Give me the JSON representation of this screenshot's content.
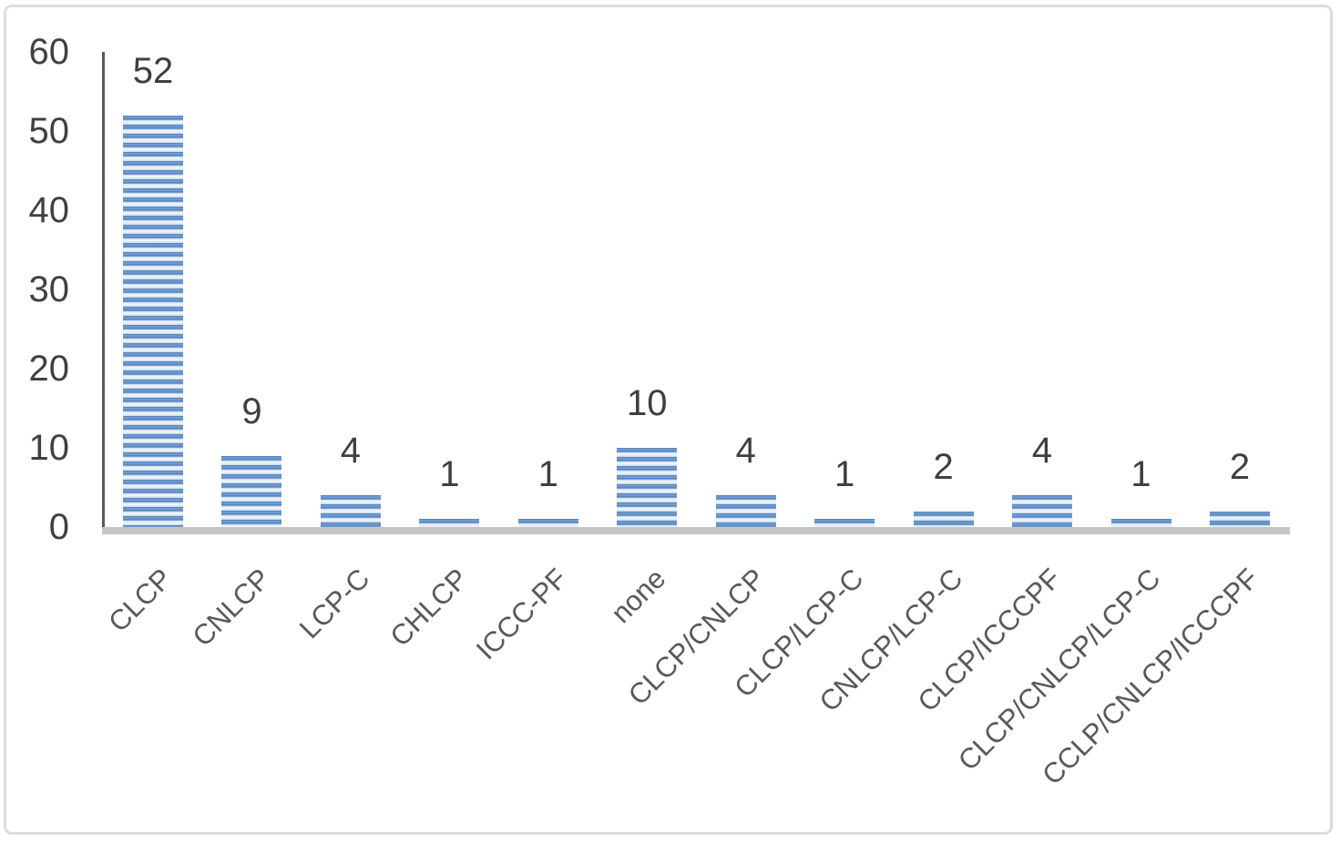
{
  "figure": {
    "background_color": "#ffffff",
    "border_color": "#dcdcdc"
  },
  "chart_data": {
    "type": "bar",
    "title": "",
    "xlabel": "",
    "ylabel": "",
    "categories": [
      "CLCP",
      "CNLCP",
      "LCP-C",
      "CHLCP",
      "ICCC-PF",
      "none",
      "CLCP/CNLCP",
      "CLCP/LCP-C",
      "CNLCP/LCP-C",
      "CLCP/ICCCPF",
      "CLCP/CNLCP/LCP-C",
      "CCLP/CNLCP/ICCCPF"
    ],
    "values": [
      52,
      9,
      4,
      1,
      1,
      10,
      4,
      1,
      2,
      4,
      1,
      2
    ],
    "data_labels_shown": true,
    "ylim": [
      0,
      60
    ],
    "yticks": [
      0,
      10,
      20,
      30,
      40,
      50,
      60
    ],
    "grid": false,
    "legend": false,
    "category_label_rotation_deg": 45,
    "colors": {
      "bar_stripe_dark": "#4b7ebb",
      "bar_stripe_light": "#e9f0f8",
      "y_axis_line": "#595959",
      "x_baseline": "#c5c5c5",
      "tick_label": "#404040",
      "value_label": "#3f3f3f",
      "category_label": "#595959"
    }
  }
}
